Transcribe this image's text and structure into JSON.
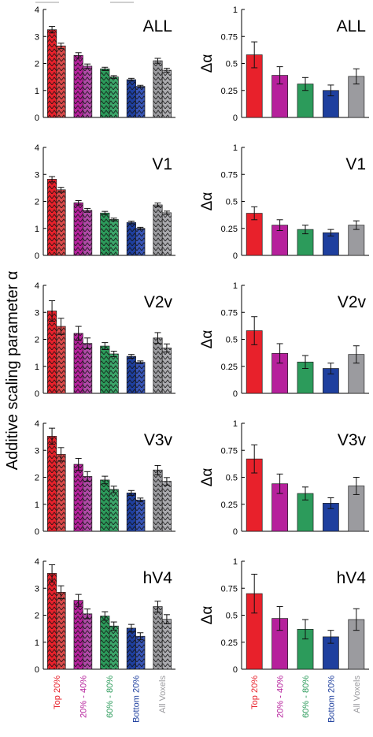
{
  "figure": {
    "ylabel_left": "Additive scaling parameter α"
  },
  "colors": {
    "red": "#e8212b",
    "magenta": "#b6219c",
    "green": "#2c9b5b",
    "blue": "#1e3f9e",
    "gray": "#9b9b9f",
    "lightred": "#d94a4a",
    "lightmagenta": "#b04aa7",
    "lightgreen": "#3ca66a",
    "lightblue": "#3855b6",
    "lightgray": "#ababaf"
  },
  "category_labels": [
    {
      "text": "Top 20%",
      "color": "#e8212b"
    },
    {
      "text": "20% - 40%",
      "color": "#b6219c"
    },
    {
      "text": "60% - 80%",
      "color": "#2c9b5b"
    },
    {
      "text": "Bottom 20%",
      "color": "#1e3f9e"
    },
    {
      "text": "All Voxels",
      "color": "#9b9b9f"
    }
  ],
  "chart_data": [
    {
      "type": "bar",
      "region": "ALL",
      "title": "ALL",
      "ylim": [
        0,
        4
      ],
      "yticks": [
        "0",
        "1",
        "2",
        "3",
        "4"
      ],
      "categories": [
        "Top 20%",
        "20% - 40%",
        "60% - 80%",
        "Bottom 20%",
        "All Voxels"
      ],
      "series": [
        {
          "values": [
            3.25,
            2.3,
            1.8,
            1.4,
            2.1
          ],
          "errors": [
            0.12,
            0.1,
            0.06,
            0.05,
            0.09
          ]
        },
        {
          "values": [
            2.65,
            1.9,
            1.5,
            1.15,
            1.75
          ],
          "errors": [
            0.1,
            0.08,
            0.05,
            0.04,
            0.07
          ]
        }
      ]
    },
    {
      "type": "bar",
      "region": "ALL",
      "title": "ALL",
      "ylabel": "Δα",
      "ylim": [
        0,
        1
      ],
      "yticks": [
        "0",
        "0.25",
        "0.5",
        "0.75",
        "1"
      ],
      "categories": [
        "Top 20%",
        "20% - 40%",
        "60% - 80%",
        "Bottom 20%",
        "All Voxels"
      ],
      "values": [
        0.58,
        0.39,
        0.31,
        0.25,
        0.38
      ],
      "errors": [
        0.12,
        0.08,
        0.06,
        0.05,
        0.07
      ]
    },
    {
      "type": "bar",
      "region": "V1",
      "title": "V1",
      "ylim": [
        0,
        4
      ],
      "yticks": [
        "0",
        "1",
        "2",
        "3",
        "4"
      ],
      "categories": [
        "Top 20%",
        "20% - 40%",
        "60% - 80%",
        "Bottom 20%",
        "All Voxels"
      ],
      "series": [
        {
          "values": [
            2.82,
            1.95,
            1.57,
            1.22,
            1.87
          ],
          "errors": [
            0.1,
            0.08,
            0.06,
            0.05,
            0.07
          ]
        },
        {
          "values": [
            2.43,
            1.67,
            1.33,
            1.0,
            1.58
          ],
          "errors": [
            0.09,
            0.07,
            0.05,
            0.04,
            0.06
          ]
        }
      ]
    },
    {
      "type": "bar",
      "region": "V1",
      "title": "V1",
      "ylabel": "Δα",
      "ylim": [
        0,
        1
      ],
      "yticks": [
        "0",
        "0.25",
        "0.5",
        "0.75",
        "1"
      ],
      "categories": [
        "Top 20%",
        "20% - 40%",
        "60% - 80%",
        "Bottom 20%",
        "All Voxels"
      ],
      "values": [
        0.39,
        0.28,
        0.24,
        0.21,
        0.28
      ],
      "errors": [
        0.06,
        0.05,
        0.04,
        0.03,
        0.04
      ]
    },
    {
      "type": "bar",
      "region": "V2v",
      "title": "V2v",
      "ylim": [
        0,
        4
      ],
      "yticks": [
        "0",
        "1",
        "2",
        "3",
        "4"
      ],
      "categories": [
        "Top 20%",
        "20% - 40%",
        "60% - 80%",
        "Bottom 20%",
        "All Voxels"
      ],
      "series": [
        {
          "values": [
            3.05,
            2.22,
            1.75,
            1.37,
            2.05
          ],
          "errors": [
            0.38,
            0.26,
            0.13,
            0.07,
            0.2
          ]
        },
        {
          "values": [
            2.48,
            1.85,
            1.46,
            1.15,
            1.68
          ],
          "errors": [
            0.3,
            0.2,
            0.1,
            0.05,
            0.15
          ]
        }
      ]
    },
    {
      "type": "bar",
      "region": "V2v",
      "title": "V2v",
      "ylabel": "Δα",
      "ylim": [
        0,
        1
      ],
      "yticks": [
        "0",
        "0.25",
        "0.5",
        "0.75",
        "1"
      ],
      "categories": [
        "Top 20%",
        "20% - 40%",
        "60% - 80%",
        "Bottom 20%",
        "All Voxels"
      ],
      "values": [
        0.58,
        0.37,
        0.29,
        0.23,
        0.36
      ],
      "errors": [
        0.13,
        0.09,
        0.06,
        0.05,
        0.08
      ]
    },
    {
      "type": "bar",
      "region": "V3v",
      "title": "V3v",
      "ylim": [
        0,
        4
      ],
      "yticks": [
        "0",
        "1",
        "2",
        "3",
        "4"
      ],
      "categories": [
        "Top 20%",
        "20% - 40%",
        "60% - 80%",
        "Bottom 20%",
        "All Voxels"
      ],
      "series": [
        {
          "values": [
            3.52,
            2.48,
            1.9,
            1.42,
            2.27
          ],
          "errors": [
            0.3,
            0.22,
            0.14,
            0.09,
            0.17
          ]
        },
        {
          "values": [
            2.85,
            2.03,
            1.55,
            1.16,
            1.85
          ],
          "errors": [
            0.25,
            0.18,
            0.12,
            0.07,
            0.14
          ]
        }
      ]
    },
    {
      "type": "bar",
      "region": "V3v",
      "title": "V3v",
      "ylabel": "Δα",
      "ylim": [
        0,
        1
      ],
      "yticks": [
        "0",
        "0.25",
        "0.5",
        "0.75",
        "1"
      ],
      "categories": [
        "Top 20%",
        "20% - 40%",
        "60% - 80%",
        "Bottom 20%",
        "All Voxels"
      ],
      "values": [
        0.67,
        0.44,
        0.35,
        0.26,
        0.42
      ],
      "errors": [
        0.13,
        0.09,
        0.06,
        0.05,
        0.08
      ]
    },
    {
      "type": "bar",
      "region": "hV4",
      "title": "hV4",
      "ylim": [
        0,
        4
      ],
      "yticks": [
        "0",
        "1",
        "2",
        "3",
        "4"
      ],
      "categories": [
        "Top 20%",
        "20% - 40%",
        "60% - 80%",
        "Bottom 20%",
        "All Voxels"
      ],
      "series": [
        {
          "values": [
            3.55,
            2.55,
            1.97,
            1.52,
            2.32
          ],
          "errors": [
            0.32,
            0.22,
            0.16,
            0.14,
            0.2
          ]
        },
        {
          "values": [
            2.85,
            2.05,
            1.6,
            1.22,
            1.85
          ],
          "errors": [
            0.24,
            0.18,
            0.15,
            0.13,
            0.17
          ]
        }
      ]
    },
    {
      "type": "bar",
      "region": "hV4",
      "title": "hV4",
      "ylabel": "Δα",
      "ylim": [
        0,
        1
      ],
      "yticks": [
        "0",
        "0.25",
        "0.5",
        "0.75",
        "1"
      ],
      "categories": [
        "Top 20%",
        "20% - 40%",
        "60% - 80%",
        "Bottom 20%",
        "All Voxels"
      ],
      "values": [
        0.7,
        0.47,
        0.37,
        0.3,
        0.46
      ],
      "errors": [
        0.18,
        0.11,
        0.09,
        0.06,
        0.1
      ]
    }
  ]
}
